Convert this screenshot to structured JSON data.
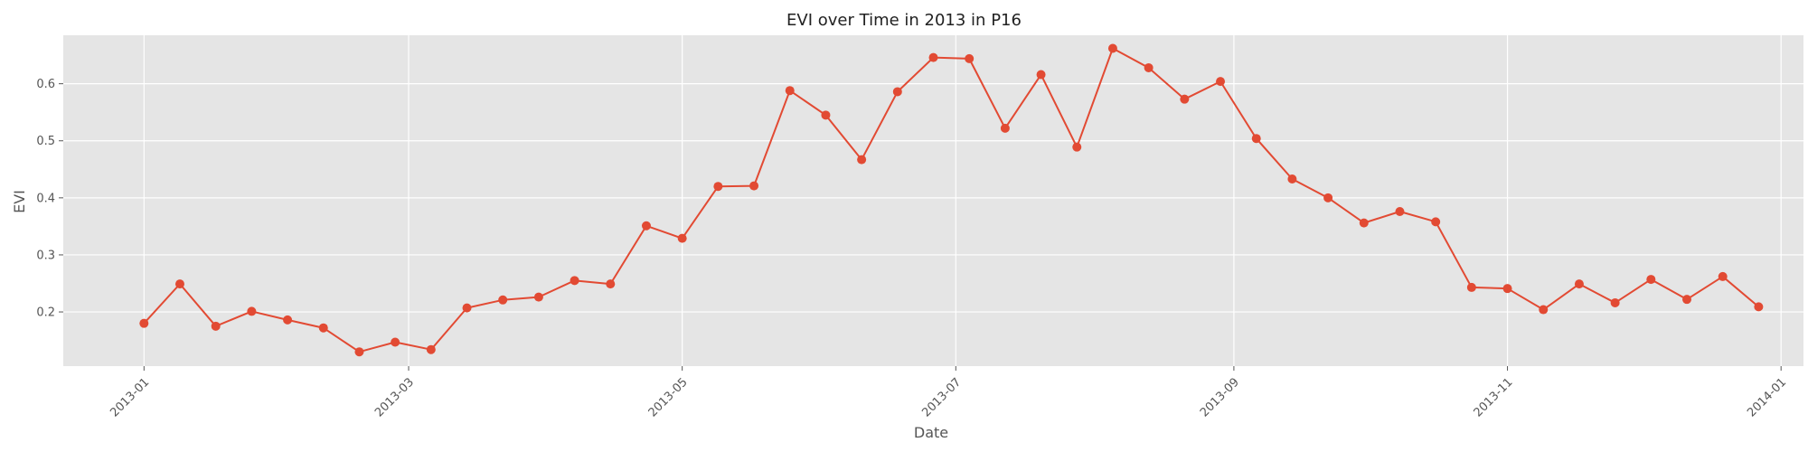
{
  "chart_data": {
    "type": "line",
    "title": "EVI over Time in 2013 in P16",
    "xlabel": "Date",
    "ylabel": "EVI",
    "xlim": [
      "2012-12-14",
      "2014-01-06"
    ],
    "ylim": [
      0.105,
      0.685
    ],
    "x_ticks": [
      "2013-01",
      "2013-03",
      "2013-05",
      "2013-07",
      "2013-09",
      "2013-11",
      "2014-01"
    ],
    "y_ticks": [
      "0.2",
      "0.3",
      "0.4",
      "0.5",
      "0.6"
    ],
    "grid": true,
    "style": {
      "background": "#e5e5e5",
      "grid_color": "#ffffff",
      "line_color": "#e24a33"
    },
    "series": [
      {
        "x": [
          "2013-01-01",
          "2013-01-09",
          "2013-01-17",
          "2013-01-25",
          "2013-02-02",
          "2013-02-10",
          "2013-02-18",
          "2013-02-26",
          "2013-03-06",
          "2013-03-14",
          "2013-03-22",
          "2013-03-30",
          "2013-04-07",
          "2013-04-15",
          "2013-04-23",
          "2013-05-01",
          "2013-05-09",
          "2013-05-17",
          "2013-05-25",
          "2013-06-02",
          "2013-06-10",
          "2013-06-18",
          "2013-06-26",
          "2013-07-04",
          "2013-07-12",
          "2013-07-20",
          "2013-07-28",
          "2013-08-05",
          "2013-08-13",
          "2013-08-21",
          "2013-08-29",
          "2013-09-06",
          "2013-09-14",
          "2013-09-22",
          "2013-09-30",
          "2013-10-08",
          "2013-10-16",
          "2013-10-24",
          "2013-11-01",
          "2013-11-09",
          "2013-11-17",
          "2013-11-25",
          "2013-12-03",
          "2013-12-11",
          "2013-12-19",
          "2013-12-27"
        ],
        "values": [
          0.18,
          0.249,
          0.175,
          0.201,
          0.186,
          0.172,
          0.13,
          0.147,
          0.134,
          0.207,
          0.221,
          0.226,
          0.255,
          0.249,
          0.351,
          0.329,
          0.42,
          0.421,
          0.588,
          0.545,
          0.467,
          0.586,
          0.646,
          0.644,
          0.522,
          0.616,
          0.489,
          0.662,
          0.628,
          0.573,
          0.604,
          0.504,
          0.433,
          0.4,
          0.356,
          0.376,
          0.358,
          0.243,
          0.241,
          0.204,
          0.249,
          0.216,
          0.257,
          0.222,
          0.262,
          0.209
        ]
      }
    ]
  }
}
